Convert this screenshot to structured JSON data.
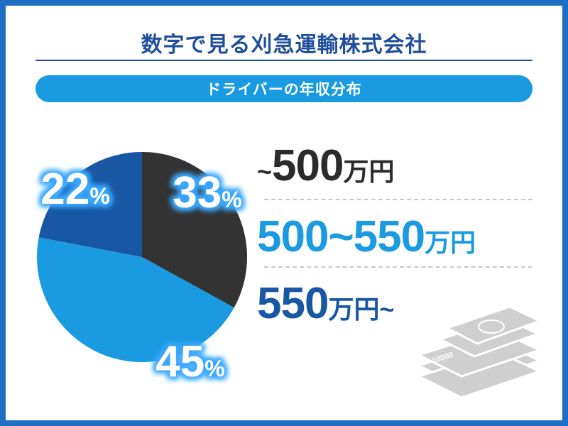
{
  "header": {
    "title": "数字で見る刈急運輸株式会社",
    "subtitle": "ドライバーの年収分布"
  },
  "colors": {
    "dark": "#333333",
    "light_blue": "#1a9ae0",
    "dark_blue": "#1857a4",
    "glow": "#3aa8ff"
  },
  "chart_data": {
    "type": "pie",
    "title": "ドライバーの年収分布",
    "slices": [
      {
        "label": "~500万円",
        "value": 33,
        "value_text": "33",
        "unit": "%",
        "color": "#333333"
      },
      {
        "label": "500~550万円",
        "value": 45,
        "value_text": "45",
        "unit": "%",
        "color": "#1a9ae0"
      },
      {
        "label": "550万円~",
        "value": 22,
        "value_text": "22",
        "unit": "%",
        "color": "#1857a4"
      }
    ]
  },
  "legend": [
    {
      "prefix": "~",
      "amount": "500",
      "suffix": "",
      "unit": "万円"
    },
    {
      "prefix": "",
      "amount": "500~550",
      "suffix": "",
      "unit": "万円"
    },
    {
      "prefix": "",
      "amount": "550",
      "suffix": "~",
      "unit": "万円"
    }
  ],
  "decoration": {
    "icon": "money-stack-icon",
    "banknote_text": "10000"
  }
}
